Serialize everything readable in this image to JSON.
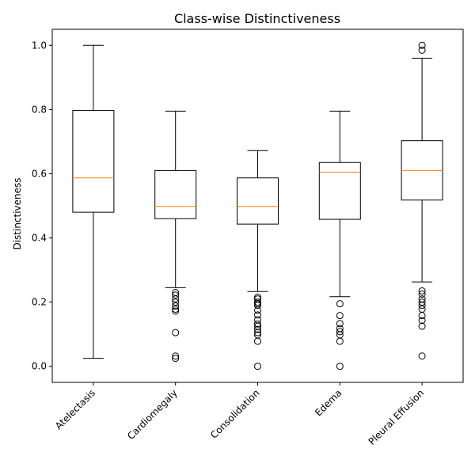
{
  "chart_data": {
    "type": "box",
    "title": "Class-wise Distinctiveness",
    "xlabel": "",
    "ylabel": "Distinctiveness",
    "ylim": [
      -0.05,
      1.05
    ],
    "yticks": [
      0.0,
      0.2,
      0.4,
      0.6,
      0.8,
      1.0
    ],
    "ytick_labels": [
      "0.0",
      "0.2",
      "0.4",
      "0.6",
      "0.8",
      "1.0"
    ],
    "grid": false,
    "categories": [
      "Atelectasis",
      "Cardiomegaly",
      "Consolidation",
      "Edema",
      "Pleural Effusion"
    ],
    "boxes": [
      {
        "category": "Atelectasis",
        "whisker_low": 0.025,
        "q1": 0.48,
        "median": 0.587,
        "q3": 0.797,
        "whisker_high": 1.0,
        "fliers": []
      },
      {
        "category": "Cardiomegaly",
        "whisker_low": 0.245,
        "q1": 0.46,
        "median": 0.498,
        "q3": 0.61,
        "whisker_high": 0.795,
        "fliers": [
          0.23,
          0.222,
          0.21,
          0.2,
          0.188,
          0.178,
          0.172,
          0.105,
          0.032,
          0.025
        ]
      },
      {
        "category": "Consolidation",
        "whisker_low": 0.233,
        "q1": 0.443,
        "median": 0.498,
        "q3": 0.587,
        "whisker_high": 0.672,
        "fliers": [
          0.215,
          0.21,
          0.2,
          0.195,
          0.19,
          0.175,
          0.16,
          0.145,
          0.132,
          0.125,
          0.115,
          0.105,
          0.098,
          0.078,
          0.0
        ]
      },
      {
        "category": "Edema",
        "whisker_low": 0.217,
        "q1": 0.458,
        "median": 0.605,
        "q3": 0.635,
        "whisker_high": 0.795,
        "fliers": [
          0.195,
          0.158,
          0.133,
          0.118,
          0.108,
          0.098,
          0.078,
          0.0
        ]
      },
      {
        "category": "Pleural Effusion",
        "whisker_low": 0.263,
        "q1": 0.518,
        "median": 0.61,
        "q3": 0.703,
        "whisker_high": 0.96,
        "fliers": [
          1.0,
          0.985,
          0.235,
          0.225,
          0.21,
          0.2,
          0.19,
          0.178,
          0.158,
          0.143,
          0.125,
          0.032
        ]
      }
    ],
    "colors": {
      "box": "#000000",
      "median": "#ff7f0e",
      "flier": "#000000"
    }
  }
}
